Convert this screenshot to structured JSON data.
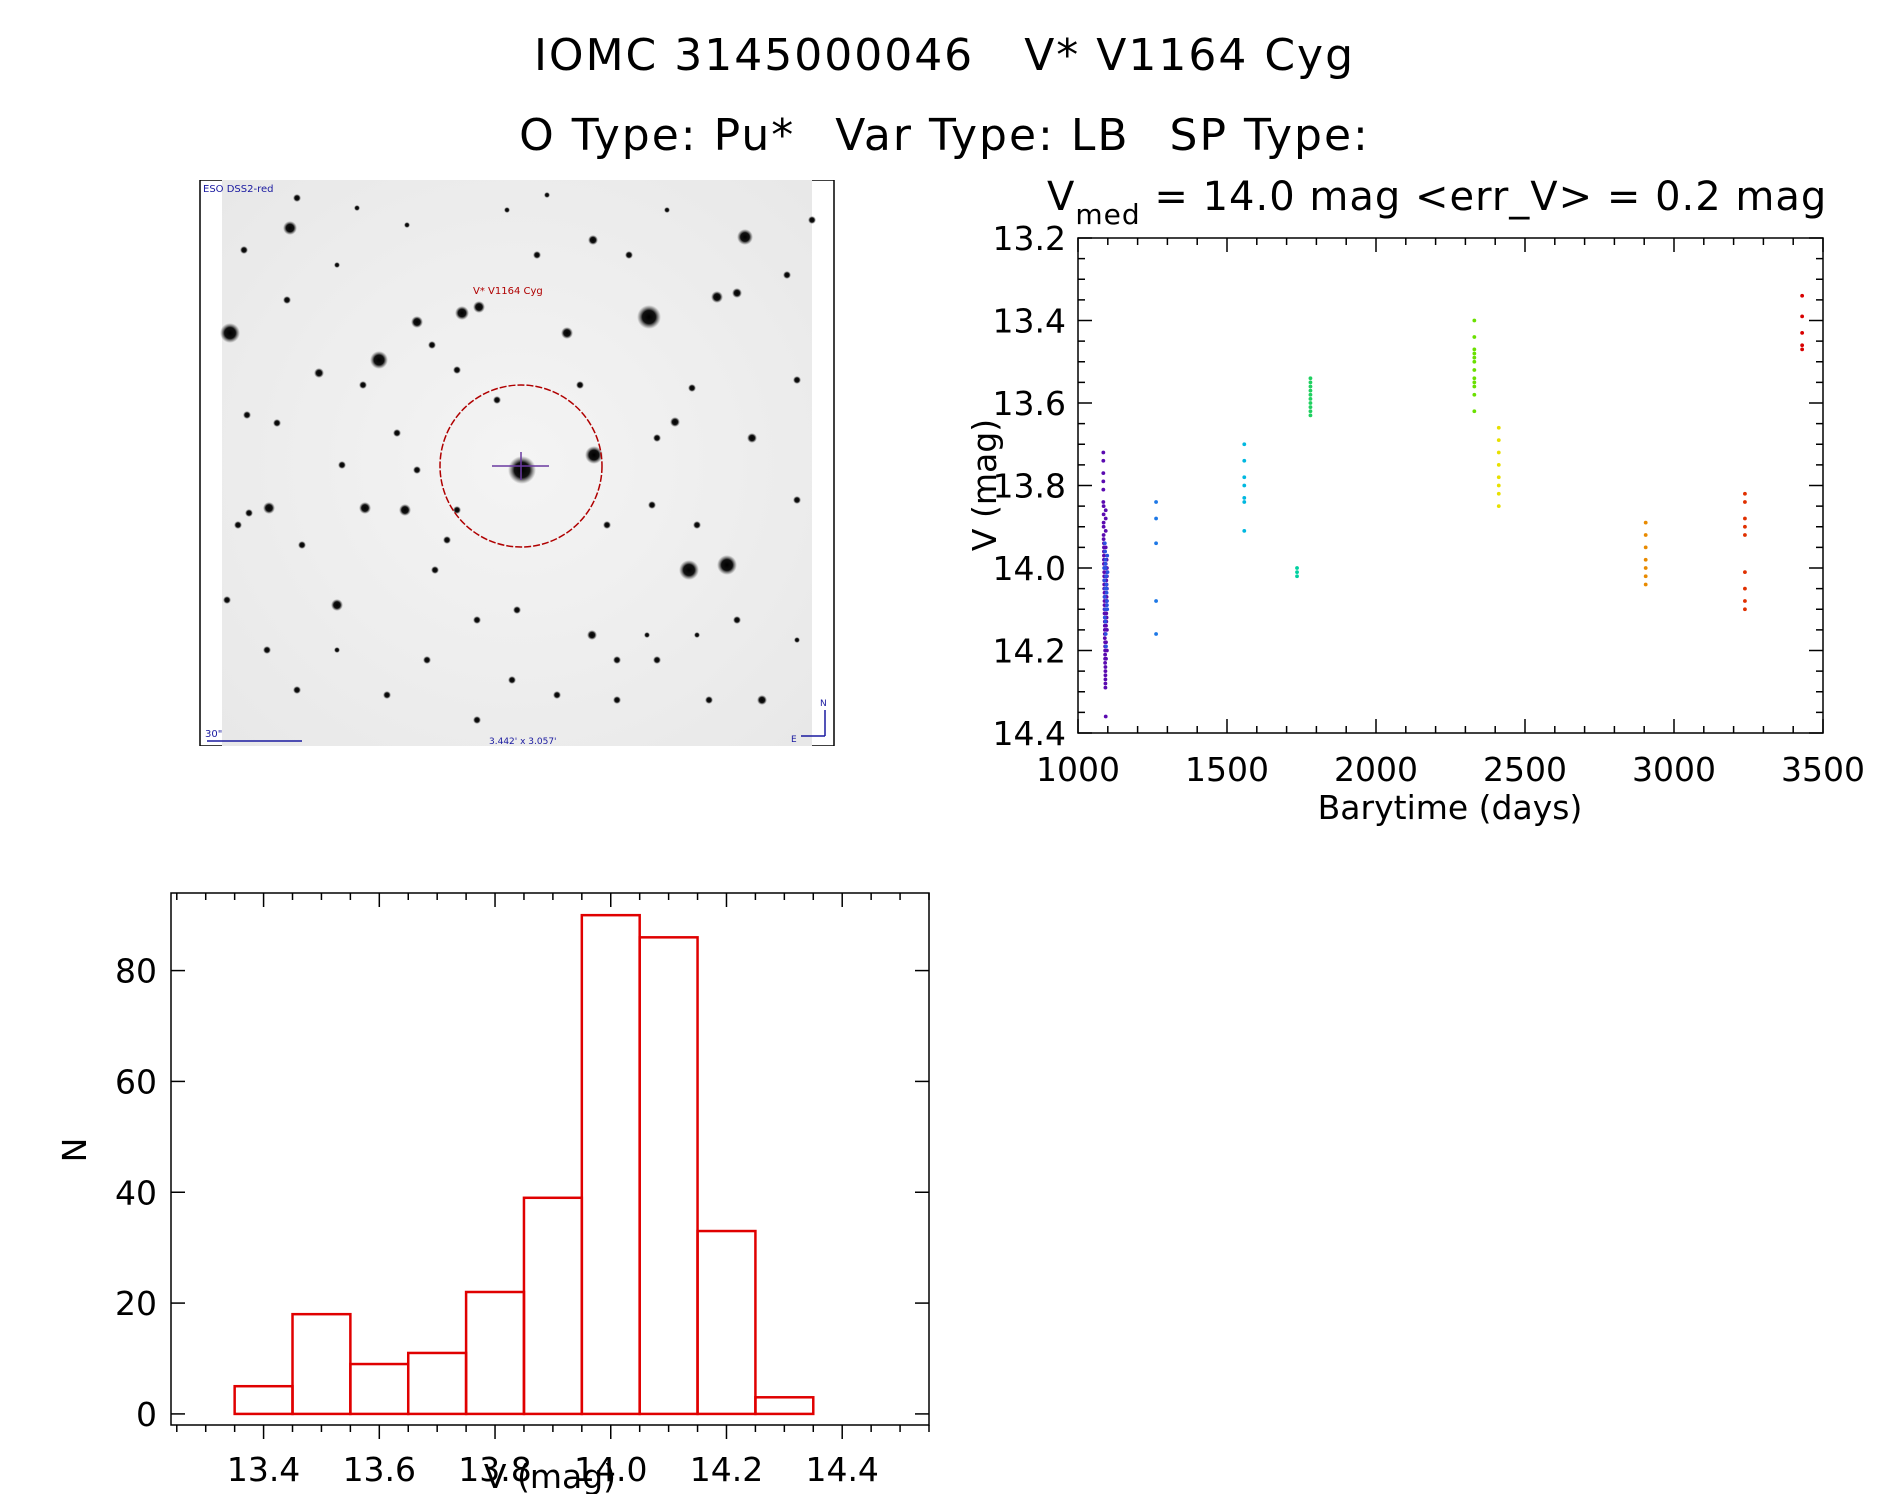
{
  "header": {
    "object_id": "IOMC 3145000046",
    "object_name": "V* V1164 Cyg",
    "o_type": "O Type: Pu*",
    "var_type": "Var Type: LB",
    "sp_type": "SP Type:"
  },
  "finder": {
    "survey_label": "ESO DSS2-red",
    "target_label": "V* V1164 Cyg",
    "scale_label": "30\"",
    "fov_label": "3.442' x 3.057'",
    "north_label": "N",
    "east_label": "E",
    "colors": {
      "label": "#1a1aa0",
      "target": "#b00000",
      "marker": "#6a3aa0"
    }
  },
  "chart_data": [
    {
      "type": "scatter",
      "title_prefix": "V",
      "title_sub": "med",
      "title_rest": " = 14.0 mag <err_V> = 0.2 mag",
      "xlabel": "Barytime (days)",
      "ylabel": "V (mag)",
      "xlim": [
        1000,
        3500
      ],
      "ylim": [
        14.4,
        13.2
      ],
      "xticks": [
        1000,
        1500,
        2000,
        2500,
        3000,
        3500
      ],
      "yticks": [
        13.2,
        13.4,
        13.6,
        13.8,
        14.0,
        14.2,
        14.4
      ],
      "ytick_labels": [
        "13.2",
        "13.4",
        "13.6",
        "13.8",
        "14.0",
        "14.2",
        "14.4"
      ],
      "series": [
        {
          "color": "#5a0ab0",
          "x": [
            1085,
            1085,
            1085,
            1085,
            1085,
            1085,
            1086,
            1086,
            1086,
            1086,
            1086,
            1086,
            1087,
            1087,
            1087,
            1087,
            1087,
            1087,
            1088,
            1088,
            1088,
            1088,
            1088,
            1088,
            1089,
            1089,
            1089,
            1089,
            1089,
            1089,
            1090,
            1090,
            1090,
            1090,
            1090,
            1090,
            1091,
            1091,
            1091,
            1091,
            1091,
            1091,
            1092,
            1092,
            1092,
            1092,
            1092,
            1092,
            1093,
            1093,
            1093,
            1093,
            1093,
            1093,
            1094,
            1094,
            1094,
            1094,
            1094,
            1094,
            1095,
            1095,
            1095,
            1095,
            1095,
            1095,
            1096,
            1096,
            1096,
            1096,
            1096,
            1096,
            1097,
            1097,
            1097,
            1097,
            1097,
            1097
          ],
          "y": [
            13.72,
            13.74,
            13.77,
            13.79,
            13.81,
            13.84,
            13.85,
            13.87,
            13.89,
            13.9,
            13.92,
            13.93,
            13.94,
            13.95,
            13.96,
            13.97,
            13.98,
            13.99,
            14.0,
            14.01,
            14.02,
            14.03,
            14.04,
            14.05,
            14.06,
            14.07,
            14.08,
            14.09,
            14.1,
            14.11,
            14.12,
            14.13,
            14.14,
            14.15,
            14.16,
            14.17,
            14.18,
            14.19,
            14.2,
            14.21,
            14.22,
            14.23,
            14.24,
            14.25,
            14.26,
            14.27,
            14.28,
            14.29,
            14.36,
            13.86,
            13.88,
            13.91,
            13.95,
            13.99,
            14.02,
            14.06,
            14.1,
            14.14,
            14.18,
            14.22,
            14.0,
            14.03,
            14.05,
            14.08,
            14.11,
            14.13,
            13.98,
            14.01,
            14.04,
            14.07,
            14.09,
            14.12,
            14.0,
            14.02,
            14.05,
            14.08,
            14.15,
            14.2
          ]
        },
        {
          "color": "#2a50e0",
          "x": [
            1090,
            1091,
            1092,
            1093,
            1094,
            1095,
            1096,
            1097,
            1098,
            1088,
            1089,
            1090,
            1091,
            1092,
            1093,
            1094,
            1095,
            1096,
            1097,
            1098,
            1099,
            1090,
            1091,
            1092
          ],
          "y": [
            13.94,
            13.96,
            13.98,
            14.0,
            14.02,
            14.04,
            14.06,
            14.08,
            14.1,
            14.0,
            14.03,
            14.07,
            14.1,
            14.13,
            14.16,
            14.19,
            14.02,
            14.05,
            14.09,
            13.97,
            14.01,
            14.12,
            14.05,
            13.99
          ]
        },
        {
          "color": "#1e78e6",
          "x": [
            1262,
            1262,
            1262,
            1262,
            1262
          ],
          "y": [
            13.84,
            13.88,
            13.94,
            14.08,
            14.16
          ]
        },
        {
          "color": "#00b8e0",
          "x": [
            1558,
            1558,
            1558,
            1558,
            1558,
            1558,
            1558
          ],
          "y": [
            13.7,
            13.74,
            13.78,
            13.8,
            13.83,
            13.84,
            13.91
          ]
        },
        {
          "color": "#00d0a0",
          "x": [
            1735,
            1735,
            1735
          ],
          "y": [
            14.0,
            14.01,
            14.02
          ]
        },
        {
          "color": "#20d060",
          "x": [
            1780,
            1780,
            1780,
            1780,
            1780,
            1780,
            1780,
            1780,
            1780,
            1780
          ],
          "y": [
            13.54,
            13.55,
            13.56,
            13.57,
            13.58,
            13.59,
            13.6,
            13.61,
            13.62,
            13.63
          ]
        },
        {
          "color": "#6ae000",
          "x": [
            2330,
            2330,
            2330,
            2330,
            2330,
            2330,
            2330,
            2330,
            2330,
            2330,
            2330,
            2330
          ],
          "y": [
            13.4,
            13.44,
            13.47,
            13.48,
            13.49,
            13.5,
            13.52,
            13.54,
            13.55,
            13.56,
            13.58,
            13.62
          ]
        },
        {
          "color": "#e8e000",
          "x": [
            2412,
            2412,
            2412,
            2412,
            2412,
            2412,
            2412,
            2412
          ],
          "y": [
            13.66,
            13.69,
            13.72,
            13.75,
            13.78,
            13.8,
            13.82,
            13.85
          ]
        },
        {
          "color": "#e88a00",
          "x": [
            2905,
            2905,
            2905,
            2905,
            2905,
            2905,
            2905
          ],
          "y": [
            13.89,
            13.92,
            13.95,
            13.98,
            14.0,
            14.02,
            14.04
          ]
        },
        {
          "color": "#e03000",
          "x": [
            3238,
            3238,
            3238,
            3238,
            3238,
            3238,
            3238,
            3238,
            3238
          ],
          "y": [
            13.82,
            13.84,
            13.88,
            13.9,
            13.92,
            14.01,
            14.05,
            14.08,
            14.1
          ]
        },
        {
          "color": "#d80000",
          "x": [
            3430,
            3430,
            3430,
            3430,
            3430
          ],
          "y": [
            13.34,
            13.39,
            13.43,
            13.46,
            13.47
          ]
        }
      ]
    },
    {
      "type": "histogram",
      "xlabel": "V (mag)",
      "ylabel": "N",
      "xlim": [
        13.24,
        14.55
      ],
      "ylim": [
        -2,
        94
      ],
      "xticks": [
        13.4,
        13.6,
        13.8,
        14.0,
        14.2,
        14.4
      ],
      "xtick_labels": [
        "13.4",
        "13.6",
        "13.8",
        "14.0",
        "14.2",
        "14.4"
      ],
      "yticks": [
        0,
        20,
        40,
        60,
        80
      ],
      "bin_edges": [
        13.35,
        13.45,
        13.55,
        13.65,
        13.75,
        13.85,
        13.95,
        14.05,
        14.15,
        14.25,
        14.35
      ],
      "counts": [
        5,
        18,
        9,
        11,
        22,
        39,
        90,
        86,
        33,
        3
      ],
      "bar_color": "#e00000"
    }
  ]
}
